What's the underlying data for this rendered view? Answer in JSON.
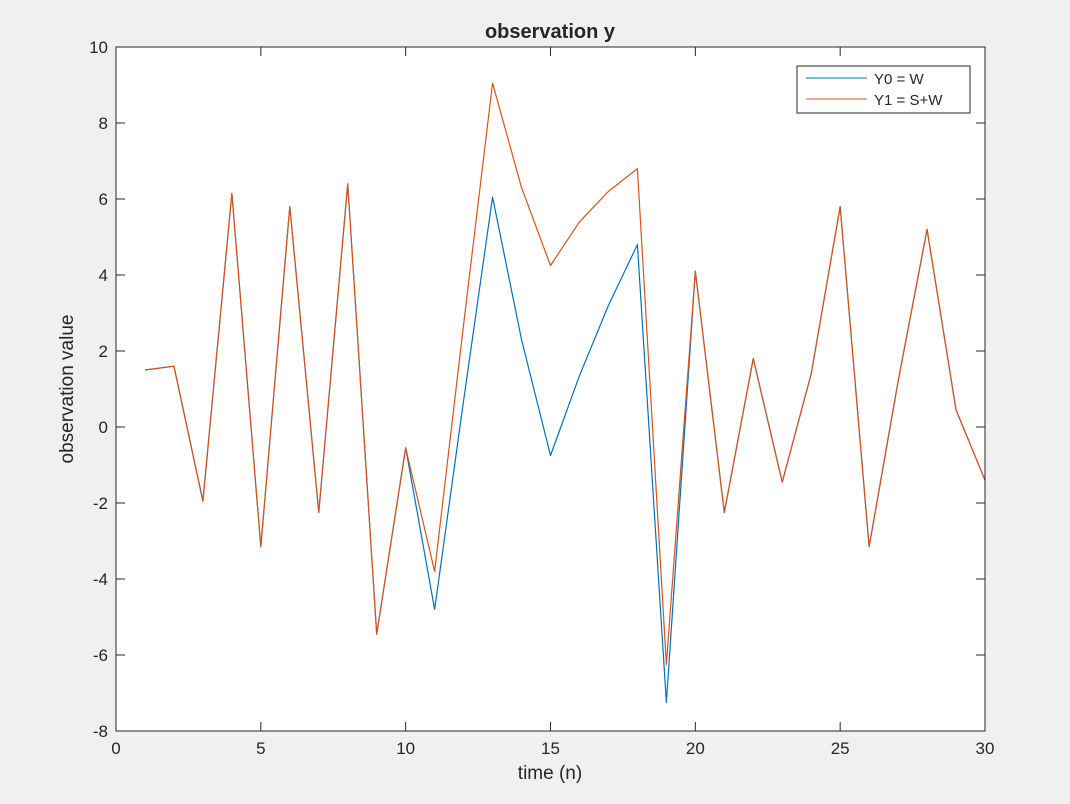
{
  "chart_data": {
    "type": "line",
    "title": "observation y",
    "xlabel": "time (n)",
    "ylabel": "observation value",
    "xlim": [
      0,
      30
    ],
    "ylim": [
      -8,
      10
    ],
    "xticks": [
      0,
      5,
      10,
      15,
      20,
      25,
      30
    ],
    "yticks": [
      -8,
      -6,
      -4,
      -2,
      0,
      2,
      4,
      6,
      8,
      10
    ],
    "grid": false,
    "legend_position": "top-right",
    "x": [
      1,
      2,
      3,
      4,
      5,
      6,
      7,
      8,
      9,
      10,
      11,
      12,
      13,
      14,
      15,
      16,
      17,
      18,
      19,
      20,
      21,
      22,
      23,
      24,
      25,
      26,
      27,
      28,
      29,
      30
    ],
    "series": [
      {
        "name": "Y0 = W",
        "color": "#0072BD",
        "values": [
          1.5,
          1.6,
          -1.95,
          6.15,
          -3.15,
          5.8,
          -2.25,
          6.4,
          -5.45,
          -0.55,
          -4.8,
          0.7,
          6.05,
          2.3,
          -0.75,
          1.35,
          3.2,
          4.8,
          -7.25,
          4.1,
          -2.25,
          1.8,
          -1.45,
          1.4,
          5.8,
          -3.15,
          1.2,
          5.2,
          0.45,
          -1.4
        ]
      },
      {
        "name": "Y1 = S+W",
        "color": "#D95319",
        "values": [
          1.5,
          1.6,
          -1.95,
          6.15,
          -3.15,
          5.8,
          -2.25,
          6.4,
          -5.45,
          -0.55,
          -3.8,
          2.7,
          9.05,
          6.3,
          4.25,
          5.4,
          6.2,
          6.8,
          -6.25,
          4.1,
          -2.25,
          1.8,
          -1.45,
          1.4,
          5.8,
          -3.15,
          1.2,
          5.2,
          0.45,
          -1.4
        ]
      }
    ]
  }
}
